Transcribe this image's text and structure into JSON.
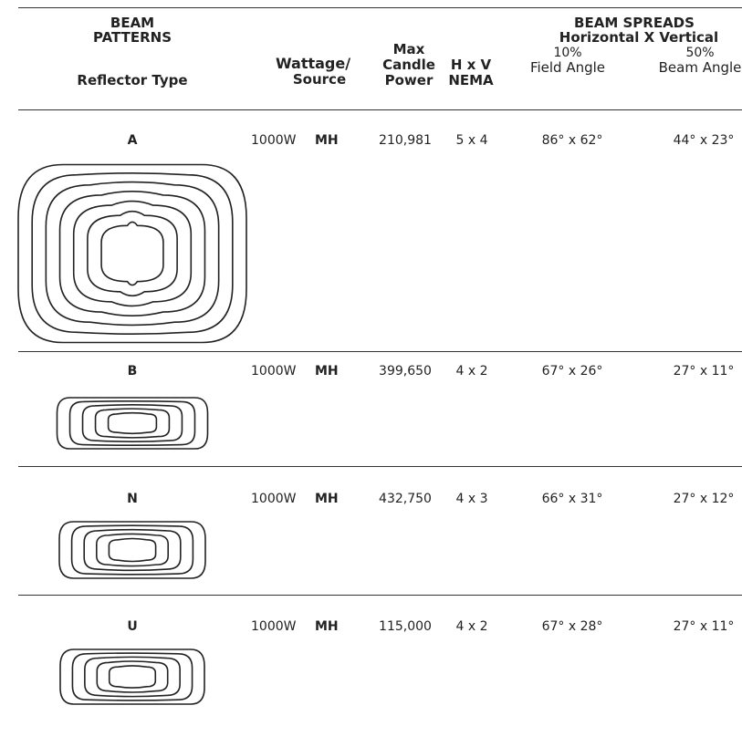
{
  "header": {
    "patterns": [
      "BEAM",
      "PATTERNS"
    ],
    "reflector_type": "Reflector Type",
    "wattage_source": [
      "Wattage/",
      "Source"
    ],
    "candle_power": [
      "Max",
      "Candle",
      "Power"
    ],
    "nema": [
      "H x V",
      "NEMA"
    ],
    "spreads": [
      "BEAM SPREADS",
      "Horizontal X Vertical"
    ],
    "field_angle": [
      "10%",
      "Field Angle"
    ],
    "beam_angle": [
      "50%",
      "Beam Angle"
    ]
  },
  "table": {
    "rows": [
      {
        "type": "A",
        "wattage": "1000W",
        "source": "MH",
        "candle_power": "210,981",
        "nema": "5 x 4",
        "field_angle": "86° x 62°",
        "beam_angle": "44° x 23°"
      },
      {
        "type": "B",
        "wattage": "1000W",
        "source": "MH",
        "candle_power": "399,650",
        "nema": "4 x 2",
        "field_angle": "67° x 26°",
        "beam_angle": "27° x 11°"
      },
      {
        "type": "N",
        "wattage": "1000W",
        "source": "MH",
        "candle_power": "432,750",
        "nema": "4 x 3",
        "field_angle": "66° x 31°",
        "beam_angle": "27° x 12°"
      },
      {
        "type": "U",
        "wattage": "1000W",
        "source": "MH",
        "candle_power": "115,000",
        "nema": "4 x 2",
        "field_angle": "67° x 28°",
        "beam_angle": "27° x 11°"
      }
    ]
  }
}
